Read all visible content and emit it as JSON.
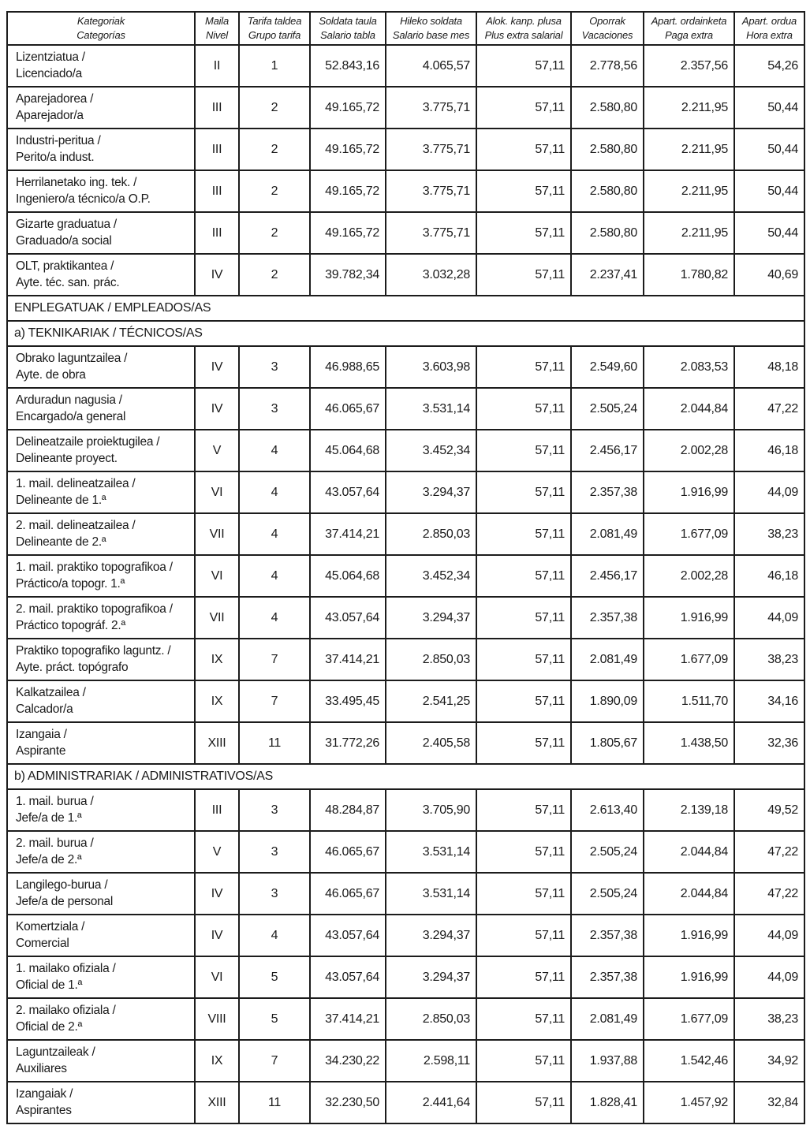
{
  "header": {
    "columns": [
      {
        "key": "kategoriak",
        "line1": "Kategoriak",
        "line2": "Categorías"
      },
      {
        "key": "maila",
        "line1": "Maila",
        "line2": "Nivel"
      },
      {
        "key": "tarifa-taldea",
        "line1": "Tarifa taldea",
        "line2": "Grupo tarifa"
      },
      {
        "key": "soldata-taula",
        "line1": "Soldata taula",
        "line2": "Salario tabla"
      },
      {
        "key": "hileko-soldata",
        "line1": "Hileko soldata",
        "line2": "Salario base mes"
      },
      {
        "key": "alok-kanp-plusa",
        "line1": "Alok. kanp. plusa",
        "line2": "Plus extra salarial"
      },
      {
        "key": "oporrak",
        "line1": "Oporrak",
        "line2": "Vacaciones"
      },
      {
        "key": "apart-ordainketa",
        "line1": "Apart. ordainketa",
        "line2": "Paga extra"
      },
      {
        "key": "apart-ordua",
        "line1": "Apart. ordua",
        "line2": "Hora extra"
      }
    ]
  },
  "colors": {
    "border": "#1c1c1c",
    "text": "#1a1a1a",
    "background": "#ffffff"
  },
  "rows": [
    {
      "type": "data",
      "category_eu": "Lizentziatua /",
      "category_es": "Licenciado/a",
      "nivel": "II",
      "grupo_tarifa": "1",
      "salario_tabla": "52.843,16",
      "salario_base_mes": "4.065,57",
      "plus_extra_salarial": "57,11",
      "vacaciones": "2.778,56",
      "paga_extra": "2.357,56",
      "hora_extra": "54,26"
    },
    {
      "type": "data",
      "category_eu": "Aparejadorea /",
      "category_es": "Aparejador/a",
      "nivel": "III",
      "grupo_tarifa": "2",
      "salario_tabla": "49.165,72",
      "salario_base_mes": "3.775,71",
      "plus_extra_salarial": "57,11",
      "vacaciones": "2.580,80",
      "paga_extra": "2.211,95",
      "hora_extra": "50,44"
    },
    {
      "type": "data",
      "category_eu": "Industri-peritua /",
      "category_es": "Perito/a indust.",
      "nivel": "III",
      "grupo_tarifa": "2",
      "salario_tabla": "49.165,72",
      "salario_base_mes": "3.775,71",
      "plus_extra_salarial": "57,11",
      "vacaciones": "2.580,80",
      "paga_extra": "2.211,95",
      "hora_extra": "50,44"
    },
    {
      "type": "data",
      "category_eu": "Herrilanetako ing. tek. /",
      "category_es": "Ingeniero/a técnico/a O.P.",
      "nivel": "III",
      "grupo_tarifa": "2",
      "salario_tabla": "49.165,72",
      "salario_base_mes": "3.775,71",
      "plus_extra_salarial": "57,11",
      "vacaciones": "2.580,80",
      "paga_extra": "2.211,95",
      "hora_extra": "50,44"
    },
    {
      "type": "data",
      "category_eu": "Gizarte graduatua /",
      "category_es": "Graduado/a social",
      "nivel": "III",
      "grupo_tarifa": "2",
      "salario_tabla": "49.165,72",
      "salario_base_mes": "3.775,71",
      "plus_extra_salarial": "57,11",
      "vacaciones": "2.580,80",
      "paga_extra": "2.211,95",
      "hora_extra": "50,44"
    },
    {
      "type": "data",
      "category_eu": "OLT, praktikantea /",
      "category_es": "Ayte. téc. san. prác.",
      "nivel": "IV",
      "grupo_tarifa": "2",
      "salario_tabla": "39.782,34",
      "salario_base_mes": "3.032,28",
      "plus_extra_salarial": "57,11",
      "vacaciones": "2.237,41",
      "paga_extra": "1.780,82",
      "hora_extra": "40,69"
    },
    {
      "type": "section",
      "label": "ENPLEGATUAK / EMPLEADOS/AS"
    },
    {
      "type": "section",
      "label": "a) TEKNIKARIAK / TÉCNICOS/AS"
    },
    {
      "type": "data",
      "category_eu": "Obrako laguntzailea /",
      "category_es": "Ayte. de obra",
      "nivel": "IV",
      "grupo_tarifa": "3",
      "salario_tabla": "46.988,65",
      "salario_base_mes": "3.603,98",
      "plus_extra_salarial": "57,11",
      "vacaciones": "2.549,60",
      "paga_extra": "2.083,53",
      "hora_extra": "48,18"
    },
    {
      "type": "data",
      "category_eu": "Arduradun nagusia /",
      "category_es": "Encargado/a general",
      "nivel": "IV",
      "grupo_tarifa": "3",
      "salario_tabla": "46.065,67",
      "salario_base_mes": "3.531,14",
      "plus_extra_salarial": "57,11",
      "vacaciones": "2.505,24",
      "paga_extra": "2.044,84",
      "hora_extra": "47,22"
    },
    {
      "type": "data",
      "category_eu": "Delineatzaile proiektugilea /",
      "category_es": "Delineante proyect.",
      "nivel": "V",
      "grupo_tarifa": "4",
      "salario_tabla": "45.064,68",
      "salario_base_mes": "3.452,34",
      "plus_extra_salarial": "57,11",
      "vacaciones": "2.456,17",
      "paga_extra": "2.002,28",
      "hora_extra": "46,18"
    },
    {
      "type": "data",
      "category_eu": "1. mail. delineatzailea /",
      "category_es": "Delineante de 1.ª",
      "nivel": "VI",
      "grupo_tarifa": "4",
      "salario_tabla": "43.057,64",
      "salario_base_mes": "3.294,37",
      "plus_extra_salarial": "57,11",
      "vacaciones": "2.357,38",
      "paga_extra": "1.916,99",
      "hora_extra": "44,09"
    },
    {
      "type": "data",
      "category_eu": "2. mail. delineatzailea /",
      "category_es": "Delineante de 2.ª",
      "nivel": "VII",
      "grupo_tarifa": "4",
      "salario_tabla": "37.414,21",
      "salario_base_mes": "2.850,03",
      "plus_extra_salarial": "57,11",
      "vacaciones": "2.081,49",
      "paga_extra": "1.677,09",
      "hora_extra": "38,23"
    },
    {
      "type": "data",
      "category_eu": "1. mail. praktiko topografikoa /",
      "category_es": "Práctico/a topogr. 1.ª",
      "nivel": "VI",
      "grupo_tarifa": "4",
      "salario_tabla": "45.064,68",
      "salario_base_mes": "3.452,34",
      "plus_extra_salarial": "57,11",
      "vacaciones": "2.456,17",
      "paga_extra": "2.002,28",
      "hora_extra": "46,18"
    },
    {
      "type": "data",
      "category_eu": "2. mail. praktiko topografikoa /",
      "category_es": "Práctico topográf. 2.ª",
      "nivel": "VII",
      "grupo_tarifa": "4",
      "salario_tabla": "43.057,64",
      "salario_base_mes": "3.294,37",
      "plus_extra_salarial": "57,11",
      "vacaciones": "2.357,38",
      "paga_extra": "1.916,99",
      "hora_extra": "44,09"
    },
    {
      "type": "data",
      "category_eu": "Praktiko topografiko laguntz. /",
      "category_es": "Ayte. práct. topógrafo",
      "nivel": "IX",
      "grupo_tarifa": "7",
      "salario_tabla": "37.414,21",
      "salario_base_mes": "2.850,03",
      "plus_extra_salarial": "57,11",
      "vacaciones": "2.081,49",
      "paga_extra": "1.677,09",
      "hora_extra": "38,23"
    },
    {
      "type": "data",
      "category_eu": "Kalkatzailea /",
      "category_es": "Calcador/a",
      "nivel": "IX",
      "grupo_tarifa": "7",
      "salario_tabla": "33.495,45",
      "salario_base_mes": "2.541,25",
      "plus_extra_salarial": "57,11",
      "vacaciones": "1.890,09",
      "paga_extra": "1.511,70",
      "hora_extra": "34,16"
    },
    {
      "type": "data",
      "category_eu": "Izangaia /",
      "category_es": "Aspirante",
      "nivel": "XIII",
      "grupo_tarifa": "11",
      "salario_tabla": "31.772,26",
      "salario_base_mes": "2.405,58",
      "plus_extra_salarial": "57,11",
      "vacaciones": "1.805,67",
      "paga_extra": "1.438,50",
      "hora_extra": "32,36"
    },
    {
      "type": "section",
      "label": "b) ADMINISTRARIAK / ADMINISTRATIVOS/AS"
    },
    {
      "type": "data",
      "category_eu": "1. mail. burua /",
      "category_es": "Jefe/a de 1.ª",
      "nivel": "III",
      "grupo_tarifa": "3",
      "salario_tabla": "48.284,87",
      "salario_base_mes": "3.705,90",
      "plus_extra_salarial": "57,11",
      "vacaciones": "2.613,40",
      "paga_extra": "2.139,18",
      "hora_extra": "49,52"
    },
    {
      "type": "data",
      "category_eu": "2. mail. burua /",
      "category_es": "Jefe/a de 2.ª",
      "nivel": "V",
      "grupo_tarifa": "3",
      "salario_tabla": "46.065,67",
      "salario_base_mes": "3.531,14",
      "plus_extra_salarial": "57,11",
      "vacaciones": "2.505,24",
      "paga_extra": "2.044,84",
      "hora_extra": "47,22"
    },
    {
      "type": "data",
      "category_eu": "Langilego-burua /",
      "category_es": "Jefe/a de personal",
      "nivel": "IV",
      "grupo_tarifa": "3",
      "salario_tabla": "46.065,67",
      "salario_base_mes": "3.531,14",
      "plus_extra_salarial": "57,11",
      "vacaciones": "2.505,24",
      "paga_extra": "2.044,84",
      "hora_extra": "47,22"
    },
    {
      "type": "data",
      "category_eu": "Komertziala /",
      "category_es": "Comercial",
      "nivel": "IV",
      "grupo_tarifa": "4",
      "salario_tabla": "43.057,64",
      "salario_base_mes": "3.294,37",
      "plus_extra_salarial": "57,11",
      "vacaciones": "2.357,38",
      "paga_extra": "1.916,99",
      "hora_extra": "44,09"
    },
    {
      "type": "data",
      "category_eu": "1. mailako ofiziala /",
      "category_es": "Oficial de 1.ª",
      "nivel": "VI",
      "grupo_tarifa": "5",
      "salario_tabla": "43.057,64",
      "salario_base_mes": "3.294,37",
      "plus_extra_salarial": "57,11",
      "vacaciones": "2.357,38",
      "paga_extra": "1.916,99",
      "hora_extra": "44,09"
    },
    {
      "type": "data",
      "category_eu": "2. mailako ofiziala /",
      "category_es": "Oficial de 2.ª",
      "nivel": "VIII",
      "grupo_tarifa": "5",
      "salario_tabla": "37.414,21",
      "salario_base_mes": "2.850,03",
      "plus_extra_salarial": "57,11",
      "vacaciones": "2.081,49",
      "paga_extra": "1.677,09",
      "hora_extra": "38,23"
    },
    {
      "type": "data",
      "category_eu": "Laguntzaileak /",
      "category_es": "Auxiliares",
      "nivel": "IX",
      "grupo_tarifa": "7",
      "salario_tabla": "34.230,22",
      "salario_base_mes": "2.598,11",
      "plus_extra_salarial": "57,11",
      "vacaciones": "1.937,88",
      "paga_extra": "1.542,46",
      "hora_extra": "34,92"
    },
    {
      "type": "data",
      "category_eu": "Izangaiak /",
      "category_es": "Aspirantes",
      "nivel": "XIII",
      "grupo_tarifa": "11",
      "salario_tabla": "32.230,50",
      "salario_base_mes": "2.441,64",
      "plus_extra_salarial": "57,11",
      "vacaciones": "1.828,41",
      "paga_extra": "1.457,92",
      "hora_extra": "32,84"
    }
  ]
}
